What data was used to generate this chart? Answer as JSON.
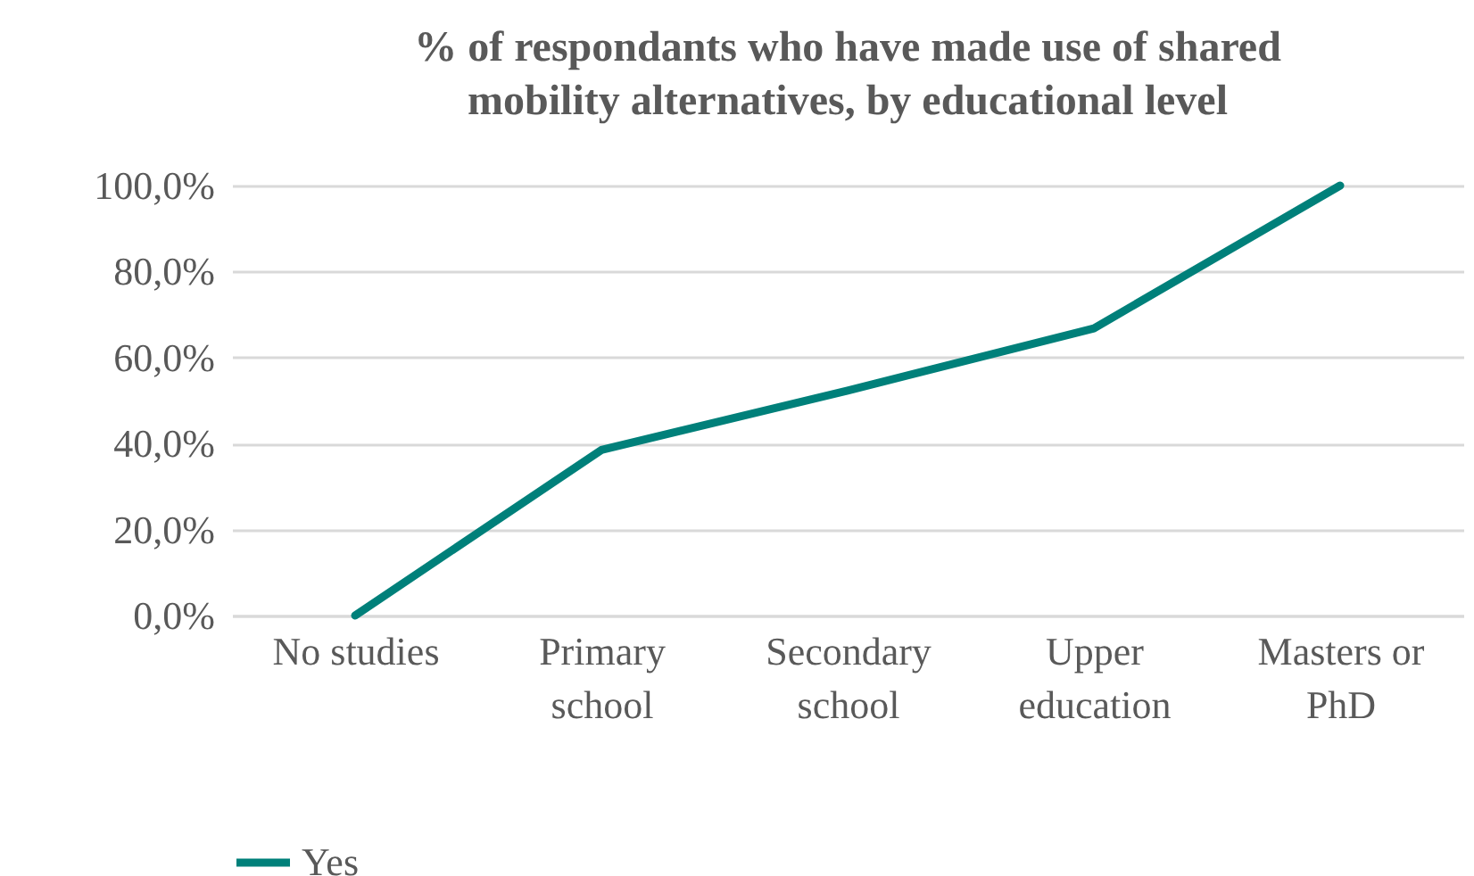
{
  "chart_data": {
    "type": "line",
    "title": "% of respondants who have made use of shared mobility alternatives, by educational level",
    "categories": [
      "No studies",
      "Primary school",
      "Secondary school",
      "Upper education",
      "Masters or PhD"
    ],
    "series": [
      {
        "name": "Yes",
        "color": "#00807a",
        "values": [
          0,
          38.5,
          52.3,
          66.8,
          100
        ]
      }
    ],
    "ylim": [
      0,
      100
    ],
    "yticks": [
      {
        "value": 0,
        "label": "0,0%"
      },
      {
        "value": 20,
        "label": "20,0%"
      },
      {
        "value": 40,
        "label": "40,0%"
      },
      {
        "value": 60,
        "label": "60,0%"
      },
      {
        "value": 80,
        "label": "80,0%"
      },
      {
        "value": 100,
        "label": "100,0%"
      }
    ],
    "grid": "y",
    "legend": "bottom",
    "marker": "none",
    "line_style": "solid"
  }
}
